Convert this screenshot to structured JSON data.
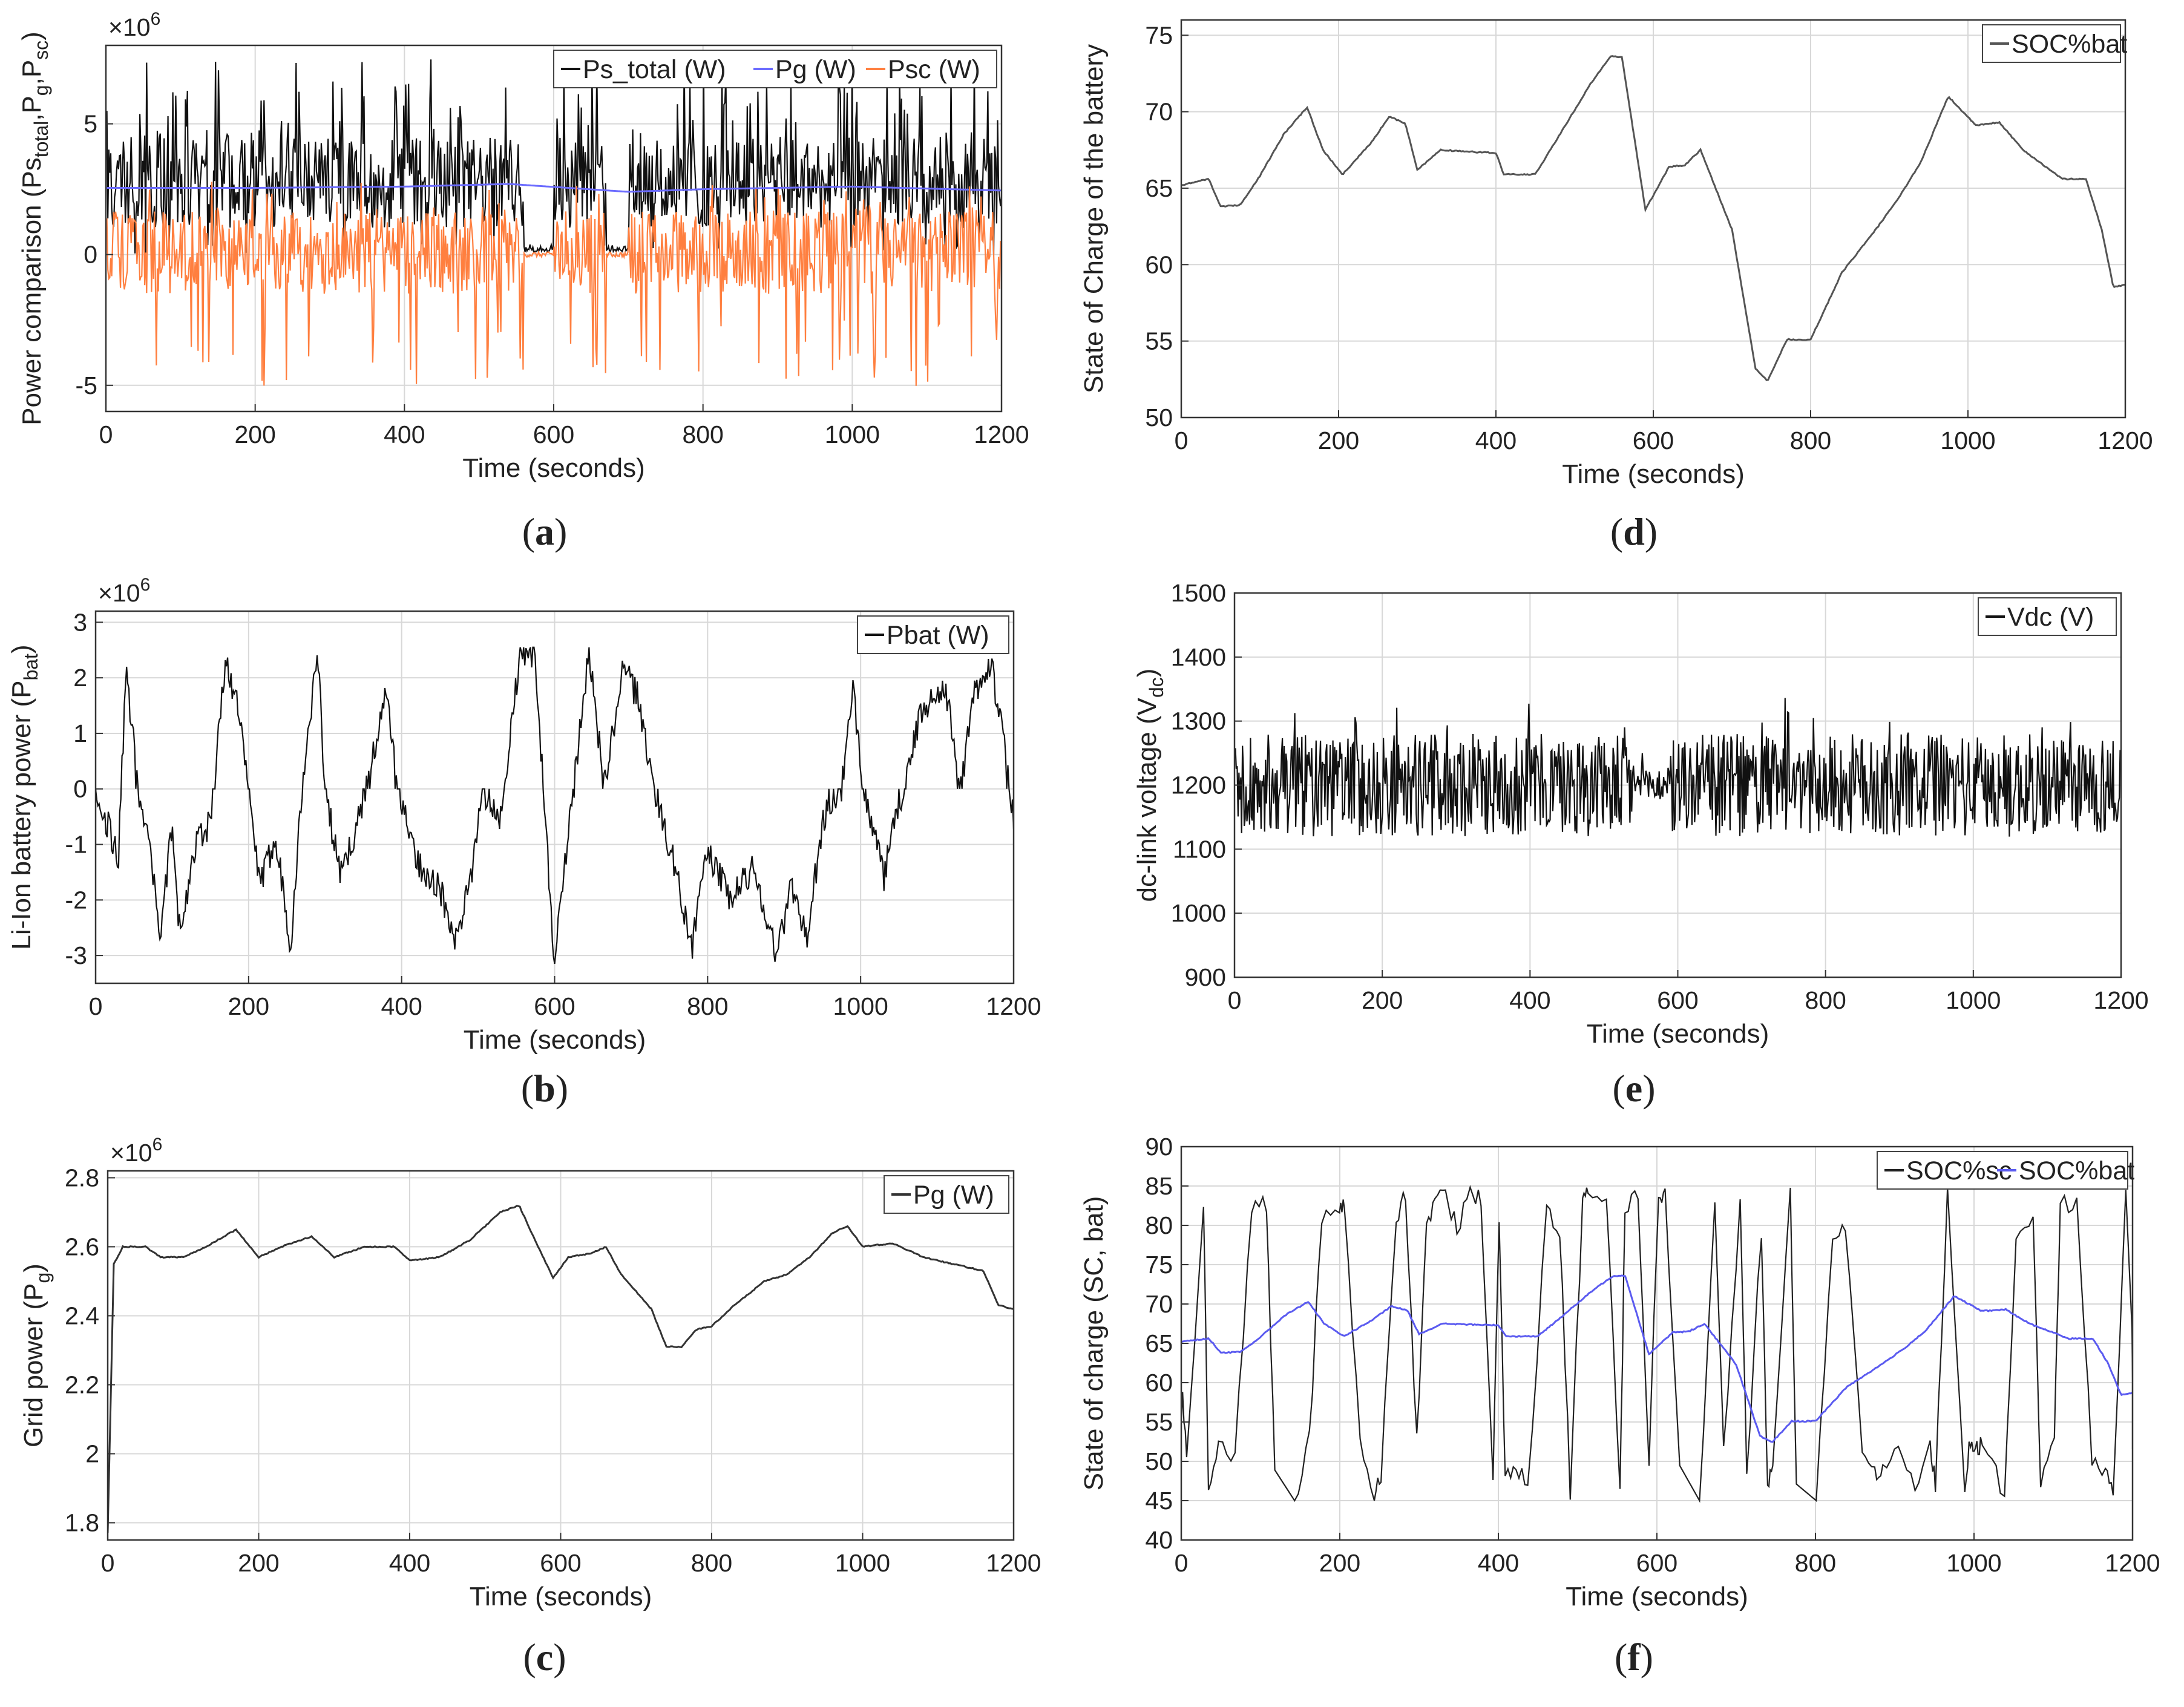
{
  "chart_data": [
    {
      "id": "a",
      "type": "line",
      "caption": "a",
      "xlabel": "Time (seconds)",
      "ylabel": "Power comparison (Ps",
      "ylabel_sub1": "total",
      "ylabel_mid1": ",P",
      "ylabel_sub2": "g",
      "ylabel_mid2": ",P",
      "ylabel_sub3": "sc",
      "ylabel_end": ")",
      "exponent": "×10",
      "exponent_pow": "6",
      "xlim": [
        0,
        1200
      ],
      "ylim": [
        -6,
        8
      ],
      "xticks": [
        0,
        200,
        400,
        600,
        800,
        1000,
        1200
      ],
      "yticks": [
        -5,
        0,
        5
      ],
      "grid": true,
      "legend_position": "top-right",
      "series": [
        {
          "name": "Ps_total (W)",
          "color": "#111111",
          "kind": "spiky",
          "base": 2.5,
          "amp": 5.2,
          "low": 0
        },
        {
          "name": "Pg (W)",
          "color": "#6b6bff",
          "kind": "flat",
          "points": [
            [
              0,
              2.55
            ],
            [
              200,
              2.55
            ],
            [
              400,
              2.6
            ],
            [
              540,
              2.7
            ],
            [
              700,
              2.4
            ],
            [
              800,
              2.5
            ],
            [
              1000,
              2.6
            ],
            [
              1200,
              2.45
            ]
          ]
        },
        {
          "name": "Psc (W)",
          "color": "#ff7f3f",
          "kind": "spiky",
          "base": 0,
          "amp": 5.0,
          "low": -5.2
        }
      ]
    },
    {
      "id": "b",
      "type": "line",
      "caption": "b",
      "xlabel": "Time (seconds)",
      "ylabel": "Li-Ion battery power (P",
      "ylabel_sub1": "bat",
      "ylabel_end": ")",
      "exponent": "×10",
      "exponent_pow": "6",
      "xlim": [
        0,
        1200
      ],
      "ylim": [
        -3.5,
        3.2
      ],
      "xticks": [
        0,
        200,
        400,
        600,
        800,
        1000,
        1200
      ],
      "yticks": [
        -3,
        -2,
        -1,
        0,
        1,
        2,
        3
      ],
      "grid": true,
      "legend_position": "top-right",
      "series": [
        {
          "name": "Pbat (W)",
          "color": "#111111",
          "kind": "battery"
        }
      ]
    },
    {
      "id": "c",
      "type": "line",
      "caption": "c",
      "xlabel": "Time (seconds)",
      "ylabel": "Grid power (P",
      "ylabel_sub1": "g",
      "ylabel_end": ")",
      "exponent": "×10",
      "exponent_pow": "6",
      "xlim": [
        0,
        1200
      ],
      "ylim": [
        1.75,
        2.82
      ],
      "xticks": [
        0,
        200,
        400,
        600,
        800,
        1000,
        1200
      ],
      "yticks": [
        1.8,
        2,
        2.2,
        2.4,
        2.6,
        2.8
      ],
      "ytick_labels": [
        "1.8",
        "2",
        "2.2",
        "2.4",
        "2.6",
        "2.8"
      ],
      "grid": true,
      "legend_position": "top-right",
      "series": [
        {
          "name": "Pg (W)",
          "color": "#333333",
          "kind": "smooth",
          "points": [
            [
              0,
              1.77
            ],
            [
              8,
              2.55
            ],
            [
              20,
              2.6
            ],
            [
              50,
              2.6
            ],
            [
              70,
              2.57
            ],
            [
              100,
              2.57
            ],
            [
              130,
              2.6
            ],
            [
              170,
              2.65
            ],
            [
              200,
              2.57
            ],
            [
              230,
              2.6
            ],
            [
              270,
              2.63
            ],
            [
              300,
              2.57
            ],
            [
              340,
              2.6
            ],
            [
              380,
              2.6
            ],
            [
              400,
              2.56
            ],
            [
              440,
              2.57
            ],
            [
              480,
              2.62
            ],
            [
              520,
              2.7
            ],
            [
              545,
              2.72
            ],
            [
              570,
              2.6
            ],
            [
              590,
              2.51
            ],
            [
              610,
              2.57
            ],
            [
              640,
              2.58
            ],
            [
              660,
              2.6
            ],
            [
              680,
              2.52
            ],
            [
              720,
              2.42
            ],
            [
              740,
              2.31
            ],
            [
              760,
              2.31
            ],
            [
              780,
              2.36
            ],
            [
              800,
              2.37
            ],
            [
              830,
              2.43
            ],
            [
              870,
              2.5
            ],
            [
              900,
              2.52
            ],
            [
              930,
              2.57
            ],
            [
              960,
              2.64
            ],
            [
              980,
              2.66
            ],
            [
              1000,
              2.6
            ],
            [
              1040,
              2.61
            ],
            [
              1080,
              2.57
            ],
            [
              1120,
              2.55
            ],
            [
              1160,
              2.53
            ],
            [
              1180,
              2.43
            ],
            [
              1200,
              2.42
            ]
          ]
        }
      ]
    },
    {
      "id": "d",
      "type": "line",
      "caption": "d",
      "xlabel": "Time (seconds)",
      "ylabel": "State of Charge of the battery",
      "xlim": [
        0,
        1200
      ],
      "ylim": [
        50,
        76
      ],
      "xticks": [
        0,
        200,
        400,
        600,
        800,
        1000,
        1200
      ],
      "yticks": [
        50,
        55,
        60,
        65,
        70,
        75
      ],
      "grid": true,
      "legend_position": "top-right",
      "series": [
        {
          "name": "SOC%bat",
          "color": "#555555",
          "kind": "smooth",
          "points": [
            [
              0,
              65.2
            ],
            [
              35,
              65.6
            ],
            [
              50,
              63.8
            ],
            [
              75,
              63.9
            ],
            [
              100,
              65.8
            ],
            [
              130,
              68.5
            ],
            [
              160,
              70.3
            ],
            [
              180,
              67.5
            ],
            [
              205,
              65.9
            ],
            [
              240,
              67.9
            ],
            [
              265,
              69.7
            ],
            [
              285,
              69.2
            ],
            [
              300,
              66.2
            ],
            [
              330,
              67.5
            ],
            [
              360,
              67.4
            ],
            [
              400,
              67.3
            ],
            [
              410,
              65.9
            ],
            [
              450,
              65.9
            ],
            [
              500,
              70.1
            ],
            [
              520,
              71.8
            ],
            [
              545,
              73.6
            ],
            [
              560,
              73.6
            ],
            [
              590,
              63.6
            ],
            [
              620,
              66.4
            ],
            [
              640,
              66.5
            ],
            [
              660,
              67.5
            ],
            [
              700,
              62.3
            ],
            [
              730,
              53.2
            ],
            [
              745,
              52.4
            ],
            [
              770,
              55.1
            ],
            [
              800,
              55.1
            ],
            [
              840,
              59.5
            ],
            [
              880,
              62.1
            ],
            [
              910,
              64.2
            ],
            [
              940,
              66.7
            ],
            [
              975,
              71
            ],
            [
              1010,
              69.1
            ],
            [
              1040,
              69.3
            ],
            [
              1070,
              67.5
            ],
            [
              1120,
              65.6
            ],
            [
              1150,
              65.6
            ],
            [
              1170,
              62.3
            ],
            [
              1185,
              58.5
            ],
            [
              1200,
              58.7
            ]
          ]
        }
      ]
    },
    {
      "id": "e",
      "type": "line",
      "caption": "e",
      "xlabel": "Time (seconds)",
      "ylabel": "dc-link voltage (V",
      "ylabel_sub1": "dc",
      "ylabel_end": ")",
      "xlim": [
        0,
        1200
      ],
      "ylim": [
        900,
        1500
      ],
      "xticks": [
        0,
        200,
        400,
        600,
        800,
        1000,
        1200
      ],
      "yticks": [
        900,
        1000,
        1100,
        1200,
        1300,
        1400,
        1500
      ],
      "grid": true,
      "legend_position": "top-right",
      "series": [
        {
          "name": "Vdc (V)",
          "color": "#111111",
          "kind": "noise",
          "base": 1200,
          "amp": 80
        }
      ]
    },
    {
      "id": "f",
      "type": "line",
      "caption": "f",
      "xlabel": "Time (seconds)",
      "ylabel": "State of charge (SC, bat)",
      "xlim": [
        0,
        1200
      ],
      "ylim": [
        40,
        90
      ],
      "xticks": [
        0,
        200,
        400,
        600,
        800,
        1000,
        1200
      ],
      "yticks": [
        40,
        45,
        50,
        55,
        60,
        65,
        70,
        75,
        80,
        85,
        90
      ],
      "grid": true,
      "legend_position": "top-right",
      "series": [
        {
          "name": "SOC%sc",
          "color": "#222222",
          "kind": "square"
        },
        {
          "name": "SOC%bat",
          "color": "#5b5bf0",
          "kind": "smooth",
          "points": [
            [
              0,
              65.2
            ],
            [
              35,
              65.6
            ],
            [
              50,
              63.8
            ],
            [
              75,
              63.9
            ],
            [
              100,
              65.8
            ],
            [
              130,
              68.5
            ],
            [
              160,
              70.3
            ],
            [
              180,
              67.5
            ],
            [
              205,
              65.9
            ],
            [
              240,
              67.9
            ],
            [
              265,
              69.7
            ],
            [
              285,
              69.2
            ],
            [
              300,
              66.2
            ],
            [
              330,
              67.5
            ],
            [
              360,
              67.4
            ],
            [
              400,
              67.3
            ],
            [
              410,
              65.9
            ],
            [
              450,
              65.9
            ],
            [
              500,
              70.1
            ],
            [
              520,
              71.8
            ],
            [
              545,
              73.6
            ],
            [
              560,
              73.6
            ],
            [
              590,
              63.6
            ],
            [
              620,
              66.4
            ],
            [
              640,
              66.5
            ],
            [
              660,
              67.5
            ],
            [
              700,
              62.3
            ],
            [
              730,
              53.2
            ],
            [
              745,
              52.4
            ],
            [
              770,
              55.1
            ],
            [
              800,
              55.1
            ],
            [
              840,
              59.5
            ],
            [
              880,
              62.1
            ],
            [
              910,
              64.2
            ],
            [
              940,
              66.7
            ],
            [
              975,
              71
            ],
            [
              1010,
              69.1
            ],
            [
              1040,
              69.3
            ],
            [
              1070,
              67.5
            ],
            [
              1120,
              65.6
            ],
            [
              1150,
              65.6
            ],
            [
              1170,
              62.3
            ],
            [
              1185,
              58.5
            ],
            [
              1200,
              58.7
            ]
          ]
        }
      ]
    }
  ]
}
